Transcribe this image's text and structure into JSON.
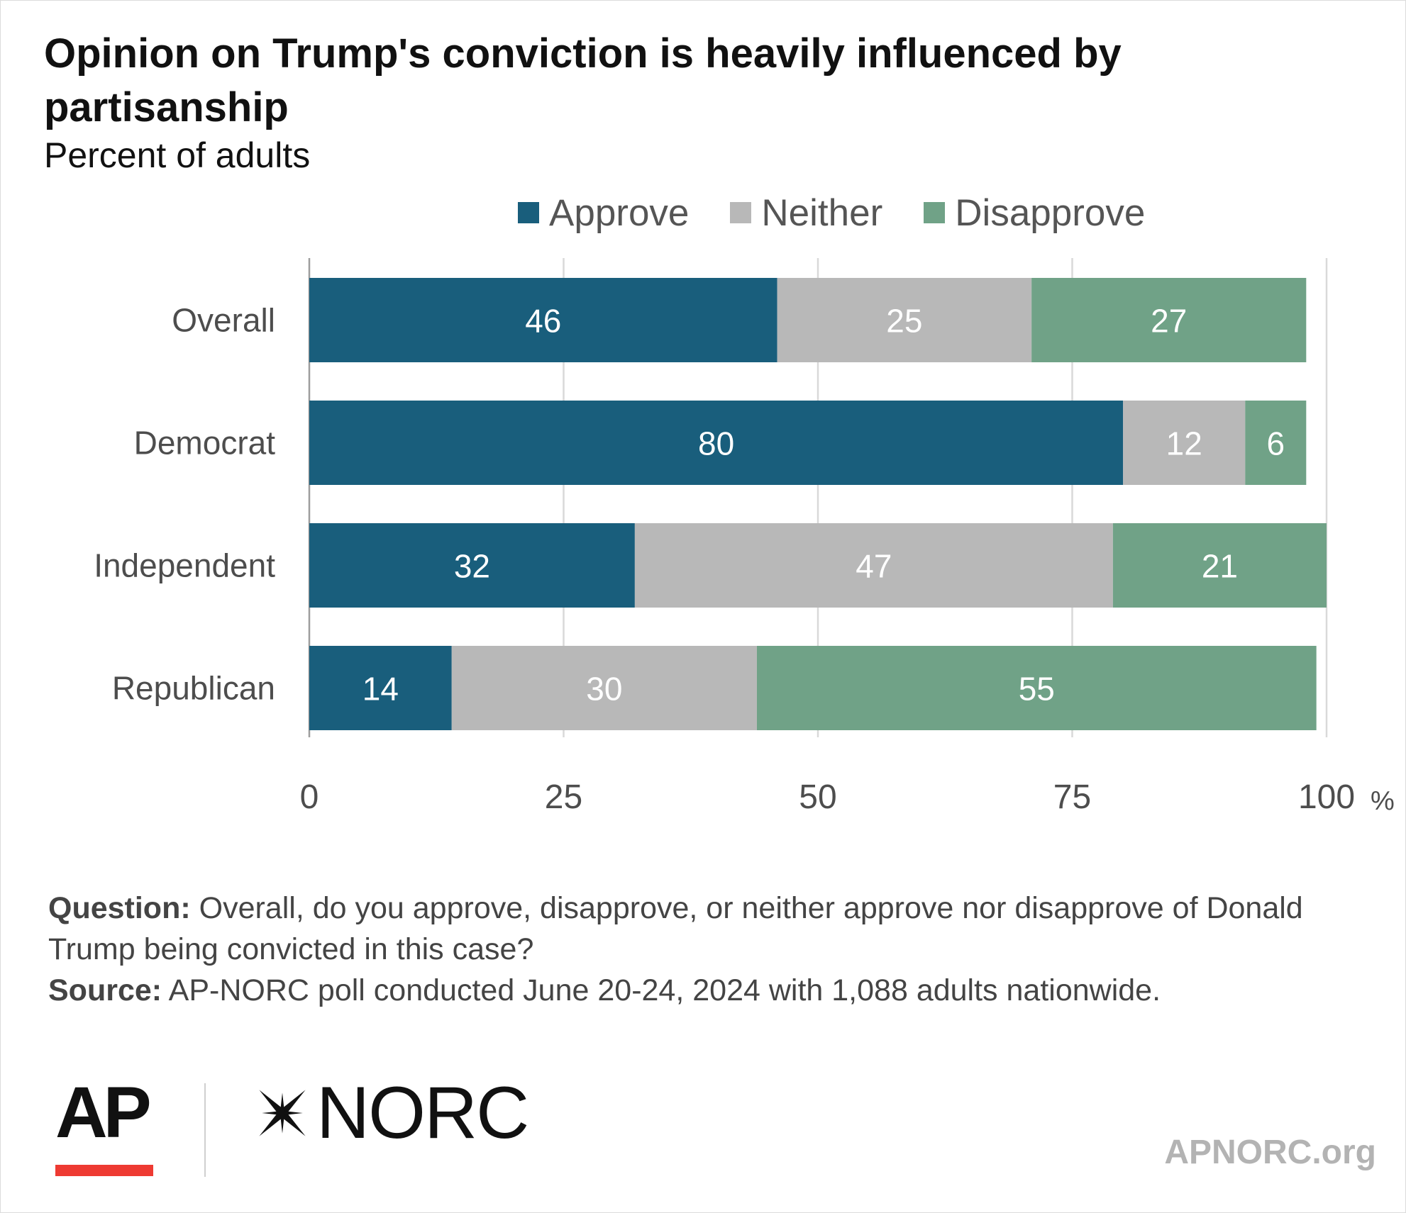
{
  "header": {
    "title": "Opinion on Trump's conviction is heavily influenced by partisanship",
    "subtitle": "Percent of adults"
  },
  "legend": [
    {
      "label": "Approve",
      "color": "#195e7c"
    },
    {
      "label": "Neither",
      "color": "#b8b8b8"
    },
    {
      "label": "Disapprove",
      "color": "#70a287"
    }
  ],
  "chart_data": {
    "type": "bar",
    "orientation": "horizontal",
    "stacked": true,
    "title": "Opinion on Trump's conviction is heavily influenced by partisanship",
    "subtitle": "Percent of adults",
    "categories": [
      "Overall",
      "Democrat",
      "Independent",
      "Republican"
    ],
    "series": [
      {
        "name": "Approve",
        "color": "#195e7c",
        "values": [
          46,
          80,
          32,
          14
        ]
      },
      {
        "name": "Neither",
        "color": "#b8b8b8",
        "values": [
          25,
          12,
          47,
          30
        ]
      },
      {
        "name": "Disapprove",
        "color": "#70a287",
        "values": [
          27,
          6,
          21,
          55
        ]
      }
    ],
    "xlim": [
      0,
      100
    ],
    "xticks": [
      0,
      25,
      50,
      75,
      100
    ],
    "xunit": "%",
    "grid": true,
    "legend_position": "top"
  },
  "notes": {
    "question_lead": "Question:",
    "question_text": " Overall, do you approve, disapprove, or neither approve nor disapprove of Donald Trump being convicted in this case?",
    "source_lead": "Source:",
    "source_text": " AP-NORC poll conducted June 20-24, 2024 with 1,088 adults nationwide."
  },
  "footer": {
    "ap_logo": "AP",
    "norc_logo": "NORC",
    "site": "APNORC.org",
    "ap_color": "#ee3a32"
  }
}
